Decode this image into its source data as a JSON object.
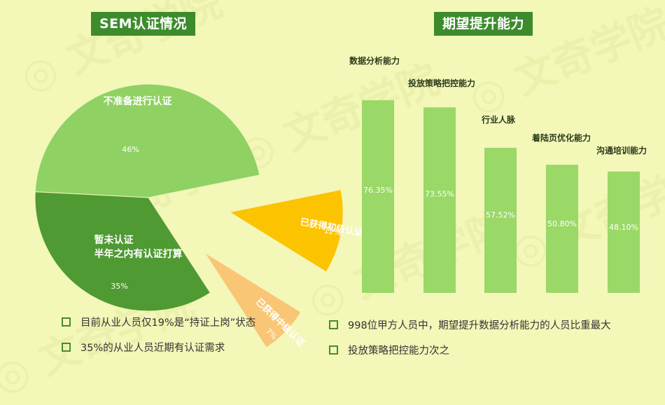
{
  "pie": {
    "title": "SEM认证情况",
    "chart_data": {
      "type": "pie",
      "slices": [
        {
          "label": "不准备进行认证",
          "value": 46,
          "display": "46%",
          "color": "#8fd163"
        },
        {
          "label": "已获得初级认证",
          "value": 12,
          "display": "12%",
          "color": "#fcc300",
          "exploded": true
        },
        {
          "label": "已获得中级认证",
          "value": 7,
          "display": "7%",
          "color": "#f8c675",
          "exploded": true
        },
        {
          "label": "暂未认证\n半年之内有认证打算",
          "value": 35,
          "display": "35%",
          "color": "#4f9a32"
        }
      ]
    }
  },
  "bar": {
    "title": "期望提升能力",
    "chart_data": {
      "type": "bar",
      "categories": [
        "数据分析能力",
        "投放策略把控能力",
        "行业人脉",
        "着陆页优化能力",
        "沟通培训能力"
      ],
      "values": [
        76.35,
        73.55,
        57.52,
        50.8,
        48.1
      ],
      "display": [
        "76.35%",
        "73.55%",
        "57.52%",
        "50.80%",
        "48.10%"
      ],
      "color": "#9ad867",
      "ylim": [
        0,
        100
      ]
    }
  },
  "bullets_left": [
    "目前从业人员仅19%是“持证上岗”状态",
    "35%的从业人员近期有认证需求"
  ],
  "bullets_right": [
    "998位甲方人员中，期望提升数据分析能力的人员比重最大",
    "投放策略把控能力次之"
  ]
}
